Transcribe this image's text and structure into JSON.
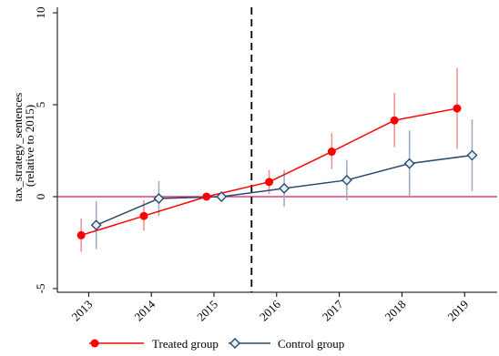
{
  "chart_data": {
    "type": "line",
    "title": "",
    "xlabel": "",
    "ylabel": "tax_strategy_sentences (relative to 2015)",
    "ylabel_lines": [
      "tax_strategy_sentences",
      "(relative to 2015)"
    ],
    "categories": [
      "2013",
      "2014",
      "2015",
      "2016",
      "2017",
      "2018",
      "2019"
    ],
    "ylim": [
      -5.2,
      10.3
    ],
    "yticks": [
      -5,
      0,
      5,
      10
    ],
    "reference_line_y": 0,
    "vertical_dashed_line_x": 2015.6,
    "grid": false,
    "legend_position": "bottom",
    "colors": {
      "treated": "#ff0000",
      "treated_ci": "#f28c8c",
      "control": "#2b4a6e",
      "control_ci": "#9aa9c2",
      "zero_line": "#d81b60",
      "axis": "#000000"
    },
    "series": [
      {
        "name": "Treated group",
        "marker": "circle",
        "x": [
          2012.88,
          2013.88,
          2014.88,
          2015.88,
          2016.88,
          2017.88,
          2018.88
        ],
        "values": [
          -2.1,
          -1.05,
          0.0,
          0.8,
          2.45,
          4.15,
          4.8
        ],
        "ci_low": [
          -3.0,
          -1.85,
          0.0,
          0.15,
          1.5,
          2.7,
          2.6
        ],
        "ci_high": [
          -1.2,
          -0.2,
          0.0,
          1.45,
          3.45,
          5.65,
          7.0
        ]
      },
      {
        "name": "Control group",
        "marker": "diamond",
        "x": [
          2013.12,
          2014.12,
          2015.12,
          2016.12,
          2017.12,
          2018.12,
          2019.12
        ],
        "values": [
          -1.55,
          -0.1,
          0.0,
          0.45,
          0.9,
          1.8,
          2.25
        ],
        "ci_low": [
          -2.85,
          -1.05,
          0.0,
          -0.55,
          -0.2,
          0.05,
          0.3
        ],
        "ci_high": [
          -0.25,
          0.85,
          0.0,
          1.45,
          2.0,
          3.6,
          4.2
        ]
      }
    ]
  }
}
